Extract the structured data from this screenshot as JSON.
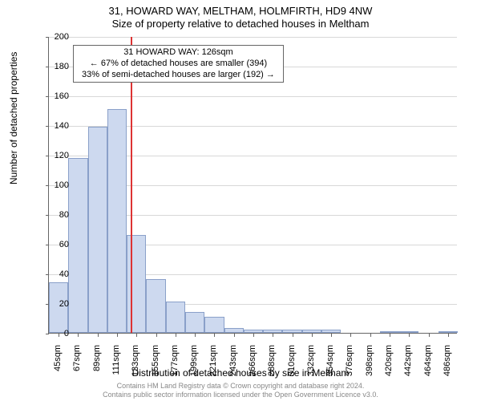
{
  "title": "31, HOWARD WAY, MELTHAM, HOLMFIRTH, HD9 4NW",
  "subtitle": "Size of property relative to detached houses in Meltham",
  "y_label": "Number of detached properties",
  "x_label": "Distribution of detached houses by size in Meltham",
  "footer_line1": "Contains HM Land Registry data © Crown copyright and database right 2024.",
  "footer_line2": "Contains public sector information licensed under the Open Government Licence v3.0.",
  "chart": {
    "type": "histogram_bar",
    "ylim": [
      0,
      200
    ],
    "ytick_step": 20,
    "grid_color": "#d8d8d8",
    "axis_color": "#666666",
    "bar_fill": "#cdd9ef",
    "bar_stroke": "#8aa0c9",
    "background_color": "#ffffff",
    "ref_line_color": "#dd3333",
    "ref_value_x": 126,
    "categories": [
      "45sqm",
      "67sqm",
      "89sqm",
      "111sqm",
      "133sqm",
      "155sqm",
      "177sqm",
      "199sqm",
      "221sqm",
      "243sqm",
      "266sqm",
      "288sqm",
      "310sqm",
      "332sqm",
      "354sqm",
      "376sqm",
      "398sqm",
      "420sqm",
      "442sqm",
      "464sqm",
      "486sqm"
    ],
    "values": [
      34,
      118,
      139,
      151,
      66,
      36,
      21,
      14,
      11,
      3,
      2,
      2,
      2,
      2,
      2,
      0,
      0,
      1,
      1,
      0,
      1
    ],
    "annotation": {
      "line1": "31 HOWARD WAY: 126sqm",
      "line2": "← 67% of detached houses are smaller (394)",
      "line3": "33% of semi-detached houses are larger (192) →"
    }
  }
}
